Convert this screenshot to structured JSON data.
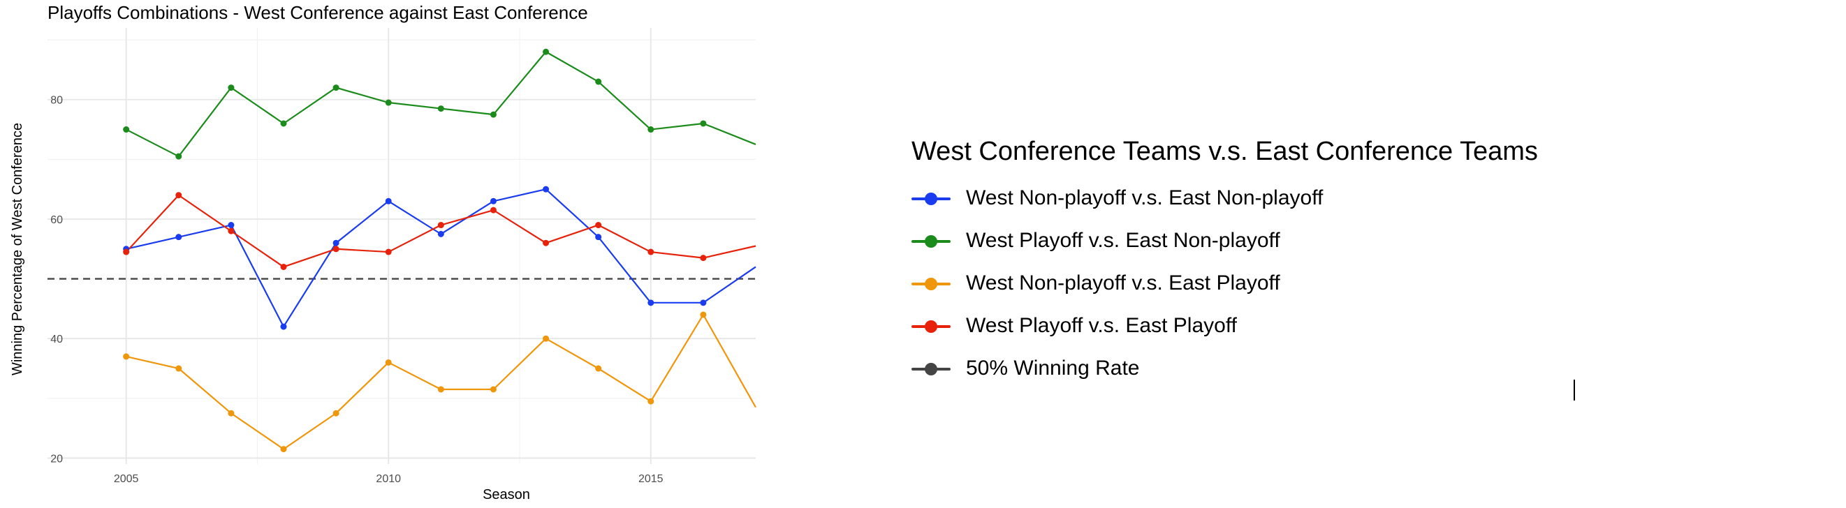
{
  "chart_data": {
    "type": "line",
    "title": "Playoffs Combinations - West Conference against East Conference",
    "xlabel": "Season",
    "ylabel": "Winning Percentage of West Conference",
    "xlim": [
      2003.5,
      2017
    ],
    "ylim": [
      19,
      92
    ],
    "xticks": [
      2005,
      2010,
      2015
    ],
    "yticks": [
      20,
      40,
      60,
      80
    ],
    "grid": true,
    "legend_title": "West Conference Teams v.s. East Conference Teams",
    "legend_position": "right",
    "x": [
      2005,
      2006,
      2007,
      2008,
      2009,
      2010,
      2011,
      2012,
      2013,
      2014,
      2015,
      2016,
      2017
    ],
    "series": [
      {
        "name": "West Non-playoff v.s. East Non-playoff",
        "color": "#1a3cf0",
        "values": [
          55,
          57,
          59,
          42,
          56,
          63,
          57.5,
          63,
          65,
          57,
          46,
          46,
          52
        ]
      },
      {
        "name": "West Playoff v.s. East Non-playoff",
        "color": "#1b8c1b",
        "values": [
          75,
          70.5,
          82,
          76,
          82,
          79.5,
          78.5,
          77.5,
          88,
          83,
          75,
          76,
          72.5
        ]
      },
      {
        "name": "West Non-playoff v.s. East Playoff",
        "color": "#f0960a",
        "values": [
          37,
          35,
          27.5,
          21.5,
          27.5,
          36,
          31.5,
          31.5,
          40,
          35,
          29.5,
          44,
          28.5
        ]
      },
      {
        "name": "West Playoff v.s. East Playoff",
        "color": "#e8220a",
        "values": [
          54.5,
          64,
          58,
          52,
          55,
          54.5,
          59,
          61.5,
          56,
          59,
          54.5,
          53.5,
          55.5
        ]
      }
    ],
    "reference_line": {
      "name": "50% Winning Rate",
      "value": 50,
      "color": "#444444",
      "style": "dashed"
    }
  }
}
